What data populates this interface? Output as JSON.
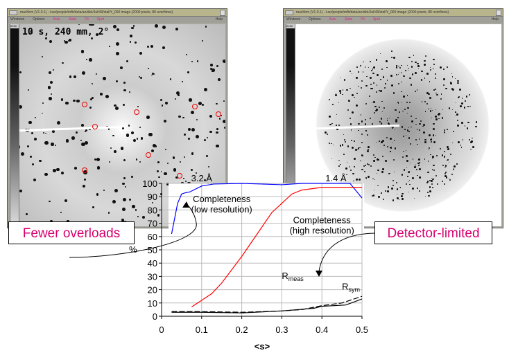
{
  "windows": [
    {
      "title": "marXtrm (V1.0.1) - /usr/people/mfb/data/ao/dkk/Jul/49/xtal/Y_000 image (2000 pixels, 80 overflows)",
      "menu": [
        "Windows",
        "Options",
        "Auto",
        "Stats",
        "Fit",
        "Spot"
      ],
      "help": "Help",
      "scale_label": "2150",
      "caption": "10 s, 240 mm, 2°"
    },
    {
      "title": "marXtrm (V1.0.1) - /usr/people/mfb/data/ao/dkk/Jul/49/xtal/Y_000 image (2000 pixels, 80 overflows)",
      "menu": [
        "Windows",
        "Options",
        "Auto",
        "Stats",
        "Fit",
        "Spot"
      ],
      "help": "Help",
      "scale_label": "2150"
    }
  ],
  "callouts": {
    "left": "Fewer overloads",
    "right": "Detector-limited"
  },
  "colors": {
    "low": "#0000ff",
    "high": "#ff0000",
    "r": "#000000",
    "callout": "#d6006f"
  },
  "chart_data": {
    "type": "line",
    "xlabel": "<s>",
    "ylabel": "%",
    "xlim": [
      0,
      0.5
    ],
    "ylim": [
      0,
      100
    ],
    "xticks": [
      "0",
      "0.1",
      "0.2",
      "0.3",
      "0.4",
      "0.5"
    ],
    "yticks": [
      "0",
      "10",
      "20",
      "30",
      "40",
      "50",
      "60",
      "70",
      "80",
      "90",
      "100"
    ],
    "top_labels": [
      {
        "x": 0.1,
        "text": "3.2 Å"
      },
      {
        "x": 0.435,
        "text": "1.4 Å"
      }
    ],
    "annotations": [
      {
        "text": "Completeness",
        "text2": "(low resolution)",
        "x": 0.15,
        "y": 86
      },
      {
        "text": "Completeness",
        "text2": "(high resolution)",
        "x": 0.4,
        "y": 70
      },
      {
        "text": "R",
        "sub": "meas",
        "x": 0.3,
        "y": 28
      },
      {
        "text": "R",
        "sub": "sym",
        "x": 0.45,
        "y": 20
      }
    ],
    "series": [
      {
        "name": "Completeness (low resolution)",
        "color": "#0000ff",
        "x": [
          0.025,
          0.04,
          0.05,
          0.06,
          0.07,
          0.1,
          0.13,
          0.2,
          0.25,
          0.3,
          0.35,
          0.4,
          0.47,
          0.5
        ],
        "y": [
          62,
          85,
          92,
          93,
          93.5,
          98,
          99.5,
          100,
          99.5,
          99,
          100,
          100,
          100,
          89
        ]
      },
      {
        "name": "Completeness (high resolution)",
        "color": "#ff0000",
        "x": [
          0.075,
          0.1,
          0.125,
          0.15,
          0.2,
          0.25,
          0.275,
          0.3,
          0.325,
          0.35,
          0.4,
          0.5
        ],
        "y": [
          7,
          12,
          17,
          25,
          45,
          67,
          78,
          85,
          92,
          95,
          97,
          97
        ]
      },
      {
        "name": "Rmeas",
        "color": "#000000",
        "dash": true,
        "x": [
          0.025,
          0.1,
          0.2,
          0.3,
          0.35,
          0.4,
          0.45,
          0.5
        ],
        "y": [
          3.5,
          3.5,
          3,
          4,
          5,
          8,
          10,
          15
        ]
      },
      {
        "name": "Rsym",
        "color": "#000000",
        "dash": false,
        "x": [
          0.025,
          0.1,
          0.2,
          0.3,
          0.38,
          0.4,
          0.46,
          0.5
        ],
        "y": [
          3,
          3,
          2.5,
          4,
          6,
          7.5,
          8.5,
          13
        ]
      }
    ]
  }
}
